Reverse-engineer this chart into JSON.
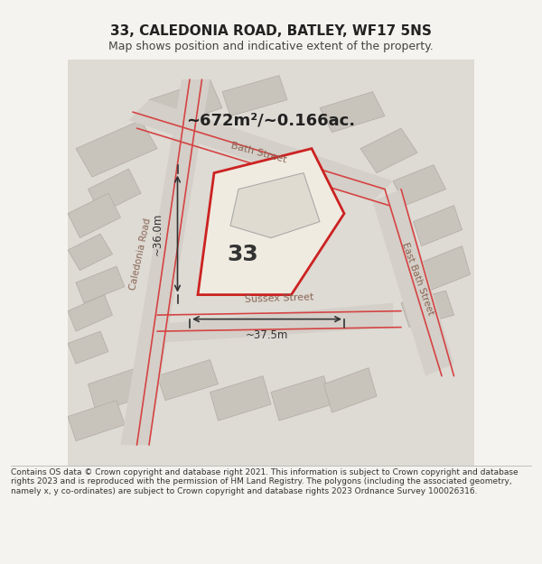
{
  "title": "33, CALEDONIA ROAD, BATLEY, WF17 5NS",
  "subtitle": "Map shows position and indicative extent of the property.",
  "area_text": "~672m²/~0.166ac.",
  "property_number": "33",
  "dim1_label": "~36.0m",
  "dim2_label": "~37.5m",
  "footer": "Contains OS data © Crown copyright and database right 2021. This information is subject to Crown copyright and database rights 2023 and is reproduced with the permission of HM Land Registry. The polygons (including the associated geometry, namely x, y co-ordinates) are subject to Crown copyright and database rights 2023 Ordnance Survey 100026316.",
  "bg_color": "#f0eeea",
  "map_bg": "#e8e4de",
  "property_fill": "#f5f0e8",
  "property_outline": "#cc2222",
  "road_line_color": "#cc3333",
  "road_bg_color": "#d8d0c8",
  "street_label_bath": "Bath Street",
  "street_label_caledonia": "Caledonia Road",
  "street_label_sussex": "Sussex Street",
  "street_label_east_bath": "East Bath Street"
}
